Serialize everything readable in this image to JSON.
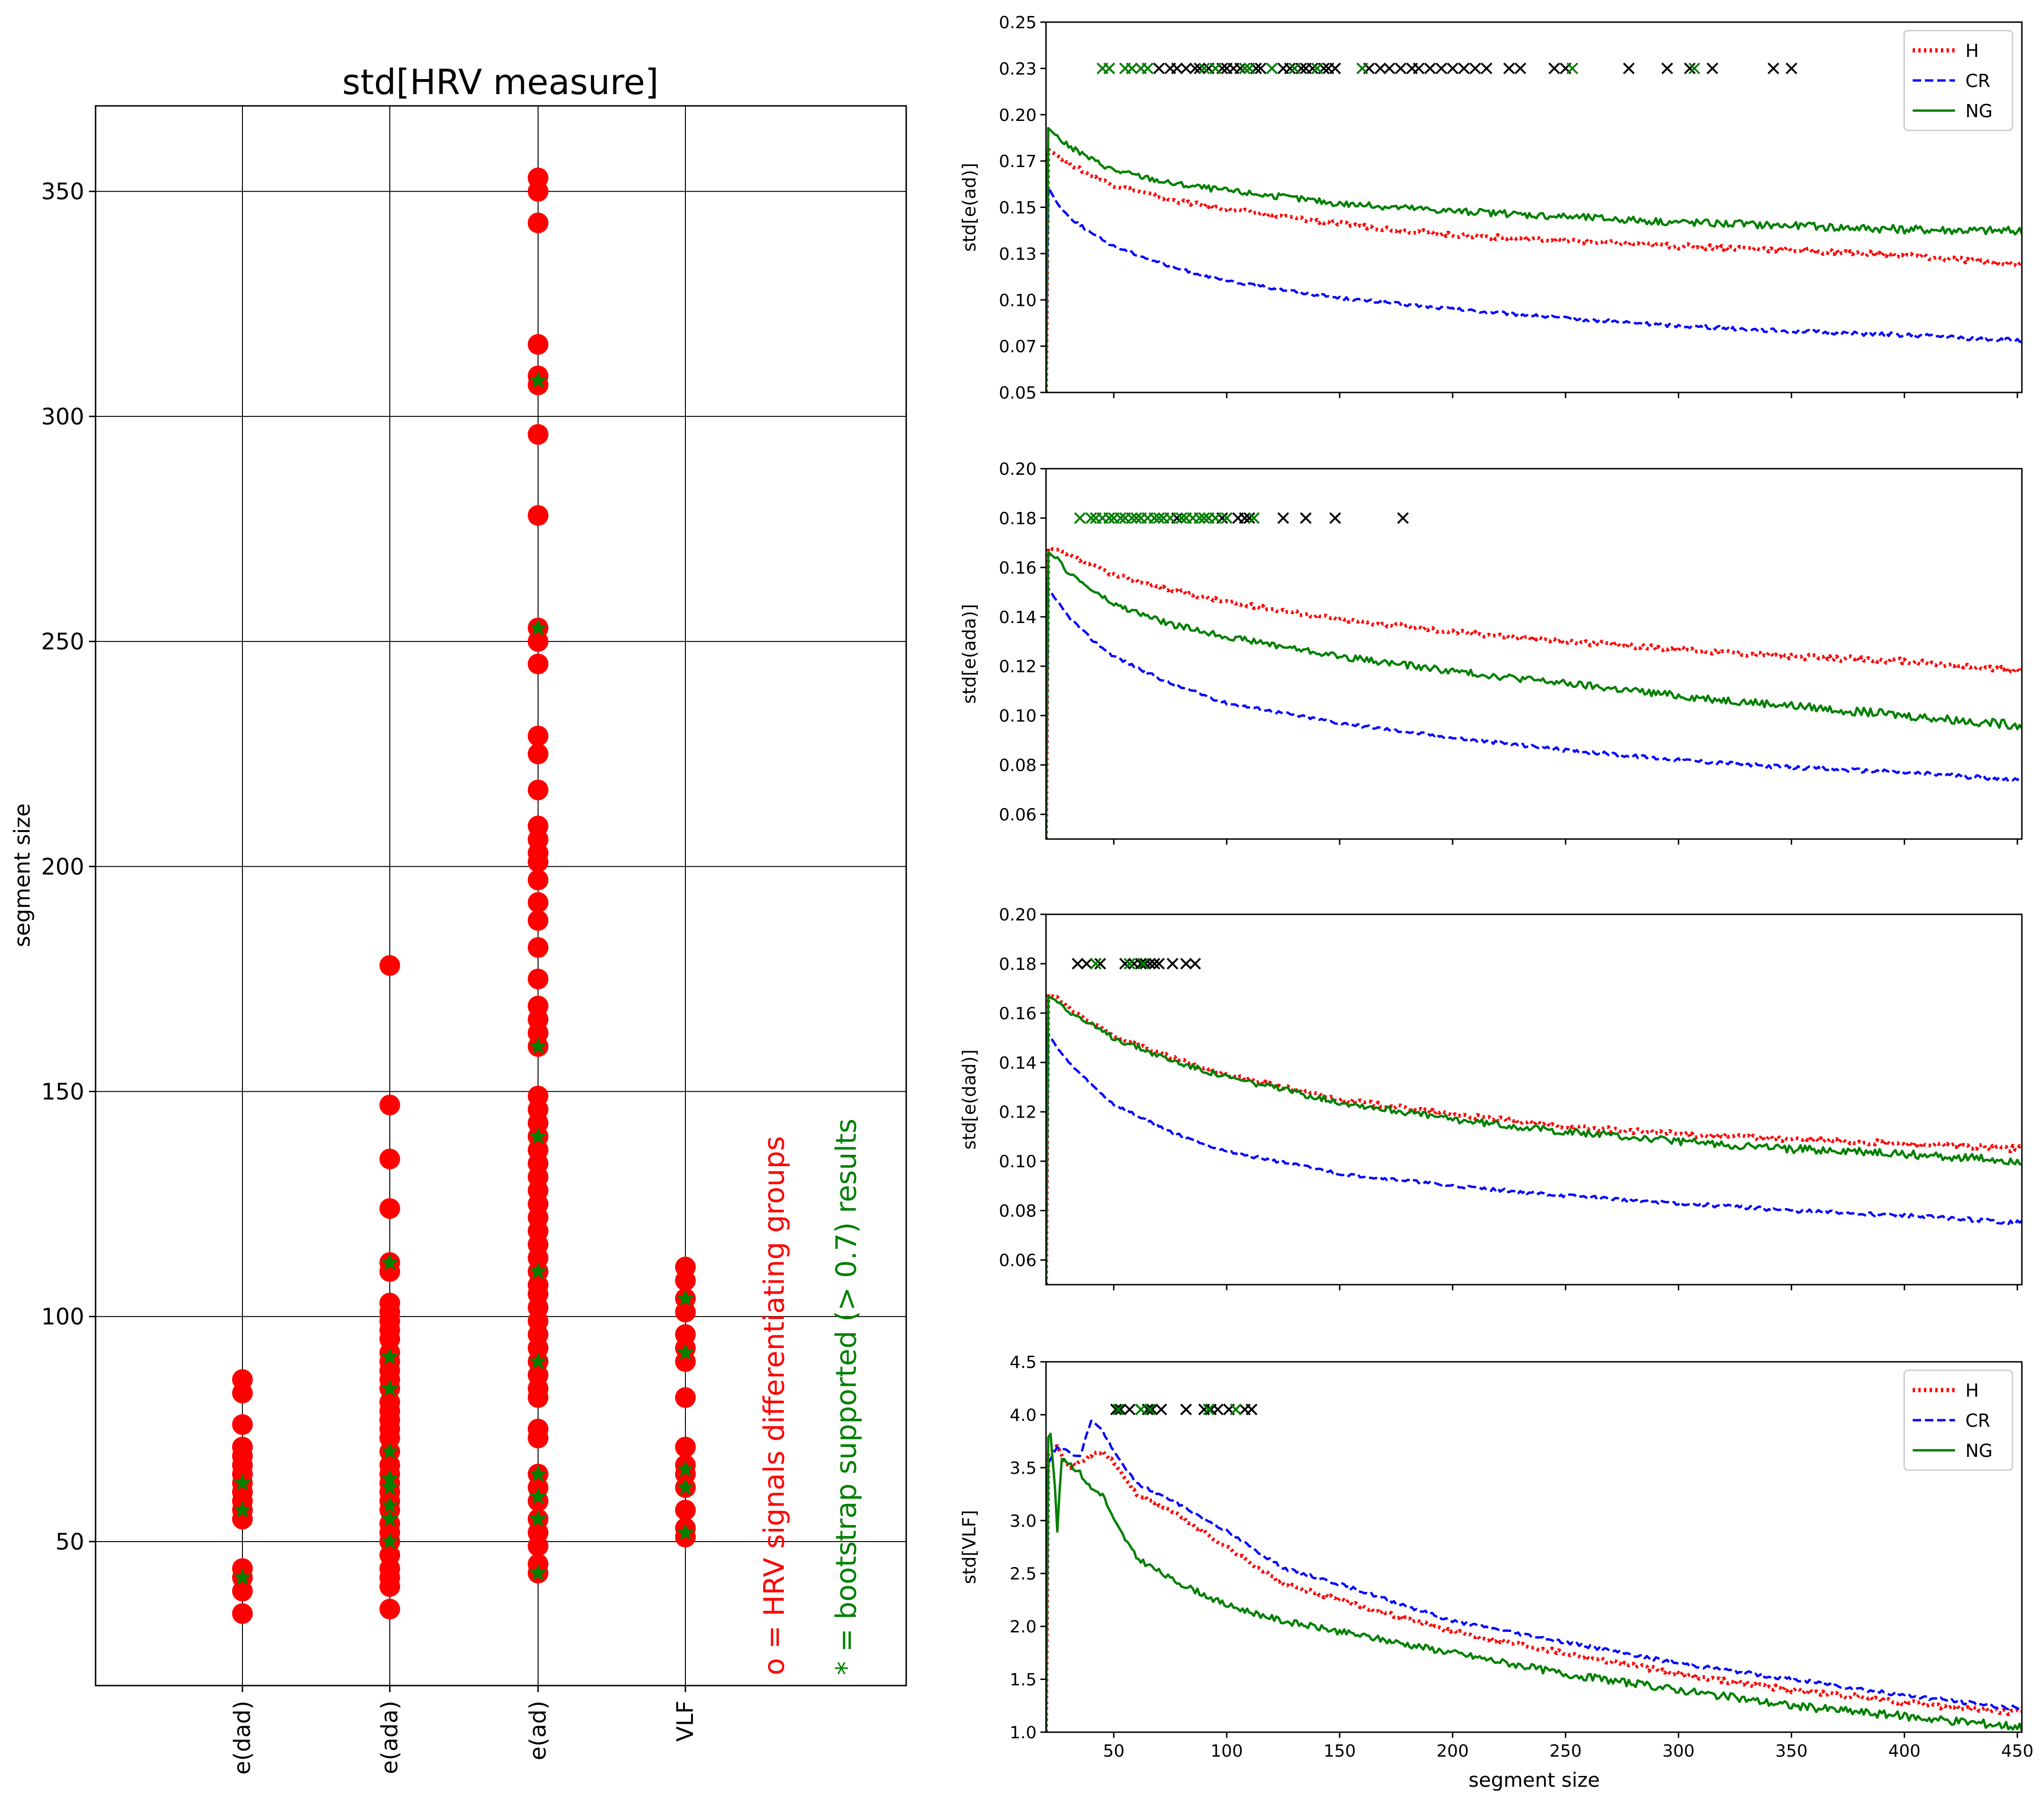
{
  "chart_data": [
    {
      "type": "scatter",
      "title": "std[HRV measure]",
      "xlabel": "",
      "ylabel": "segment size",
      "ylim": [
        18,
        369
      ],
      "yticks": [
        50,
        100,
        150,
        200,
        250,
        300,
        350
      ],
      "categories": [
        "e(dad)",
        "e(ada)",
        "e(ad)",
        "VLF"
      ],
      "annotations": [
        {
          "text": "o = HRV signals differentiating groups",
          "color": "#ff0000"
        },
        {
          "text": "* = bootstrap supported (> 0.7) results",
          "color": "#008000"
        }
      ],
      "series": [
        {
          "name": "HRV signals differentiating groups",
          "marker": "o",
          "color": "#ff0000",
          "points": {
            "e(dad)": [
              34,
              39,
              42,
              44,
              55,
              57,
              59,
              61,
              63,
              65,
              67,
              69,
              71,
              76,
              83,
              86
            ],
            "e(ada)": [
              35,
              40,
              42,
              44,
              47,
              50,
              52,
              54,
              57,
              59,
              61,
              63,
              65,
              67,
              70,
              73,
              75,
              77,
              79,
              81,
              84,
              86,
              88,
              90,
              92,
              95,
              97,
              99,
              101,
              103,
              110,
              112,
              124,
              135,
              147,
              178
            ],
            "e(ad)": [
              43,
              45,
              49,
              52,
              55,
              59,
              62,
              65,
              73,
              75,
              82,
              84,
              87,
              90,
              93,
              96,
              99,
              102,
              105,
              107,
              110,
              113,
              116,
              119,
              122,
              125,
              128,
              131,
              134,
              137,
              140,
              143,
              146,
              149,
              160,
              163,
              166,
              169,
              175,
              182,
              188,
              192,
              197,
              201,
              203,
              206,
              209,
              217,
              225,
              229,
              245,
              250,
              253,
              278,
              296,
              307,
              309,
              316,
              343,
              350,
              353
            ],
            "VLF": [
              51,
              53,
              57,
              62,
              65,
              67,
              71,
              82,
              90,
              93,
              96,
              101,
              104,
              108,
              111
            ]
          }
        },
        {
          "name": "bootstrap supported (> 0.7) results",
          "marker": "*",
          "color": "#008000",
          "points": {
            "e(dad)": [
              42,
              57,
              63
            ],
            "e(ada)": [
              50,
              55,
              58,
              62,
              64,
              70,
              84,
              91,
              112
            ],
            "e(ad)": [
              43,
              55,
              60,
              65,
              90,
              110,
              140,
              160,
              253,
              308
            ],
            "VLF": [
              52,
              62,
              66,
              92,
              104
            ]
          }
        }
      ]
    },
    {
      "type": "line",
      "xlabel": "",
      "ylabel": "std[e(ad)]",
      "xlim": [
        20,
        452
      ],
      "ylim": [
        0.05,
        0.25
      ],
      "yticks": [
        0.05,
        0.075,
        0.1,
        0.125,
        0.15,
        0.175,
        0.2,
        0.225,
        0.25
      ],
      "legend": "top-right",
      "marker_row_y": 0.225,
      "x_markers": [
        45,
        48,
        55,
        58,
        62,
        65,
        70,
        75,
        78,
        82,
        86,
        88,
        92,
        95,
        98,
        100,
        103,
        106,
        108,
        110,
        113,
        115,
        120,
        125,
        128,
        130,
        133,
        135,
        138,
        140,
        143,
        145,
        148,
        160,
        163,
        168,
        172,
        177,
        182,
        185,
        190,
        195,
        200,
        205,
        210,
        215,
        225,
        230,
        245,
        250,
        278,
        295,
        305,
        315,
        342,
        350
      ],
      "green_markers": [
        45,
        48,
        55,
        58,
        62,
        65,
        90,
        95,
        108,
        110,
        120,
        130,
        140,
        160,
        253,
        307
      ],
      "series": [
        {
          "name": "H",
          "color": "#ff0000",
          "style": "dotted",
          "x": [
            20,
            25,
            30,
            40,
            50,
            75,
            100,
            150,
            200,
            250,
            300,
            350,
            400,
            452
          ],
          "y": [
            0.182,
            0.178,
            0.174,
            0.167,
            0.162,
            0.154,
            0.149,
            0.141,
            0.135,
            0.132,
            0.129,
            0.127,
            0.124,
            0.119
          ]
        },
        {
          "name": "CR",
          "color": "#0000ff",
          "style": "dashed",
          "x": [
            20,
            25,
            30,
            40,
            50,
            75,
            100,
            150,
            200,
            250,
            300,
            350,
            400,
            452
          ],
          "y": [
            0.163,
            0.152,
            0.145,
            0.136,
            0.129,
            0.118,
            0.11,
            0.101,
            0.095,
            0.09,
            0.086,
            0.083,
            0.081,
            0.078
          ]
        },
        {
          "name": "NG",
          "color": "#008000",
          "style": "solid",
          "x": [
            20,
            25,
            30,
            40,
            50,
            75,
            100,
            150,
            200,
            250,
            300,
            350,
            400,
            452
          ],
          "y": [
            0.194,
            0.188,
            0.183,
            0.176,
            0.17,
            0.163,
            0.159,
            0.152,
            0.148,
            0.145,
            0.142,
            0.14,
            0.138,
            0.137
          ]
        }
      ]
    },
    {
      "type": "line",
      "xlabel": "",
      "ylabel": "std[e(ada)]",
      "xlim": [
        20,
        452
      ],
      "ylim": [
        0.05,
        0.2
      ],
      "yticks": [
        0.06,
        0.08,
        0.1,
        0.12,
        0.14,
        0.16,
        0.18,
        0.2
      ],
      "marker_row_y": 0.18,
      "x_markers": [
        35,
        40,
        42,
        45,
        48,
        50,
        53,
        55,
        58,
        60,
        62,
        65,
        68,
        70,
        72,
        75,
        78,
        80,
        82,
        85,
        88,
        90,
        92,
        95,
        98,
        100,
        105,
        108,
        110,
        112,
        125,
        135,
        148,
        178
      ],
      "green_markers": [
        35,
        40,
        42,
        45,
        48,
        50,
        53,
        55,
        58,
        60,
        62,
        65,
        68,
        70,
        72,
        75,
        80,
        82,
        85,
        88,
        90,
        92,
        95,
        100,
        112
      ],
      "series": [
        {
          "name": "H",
          "color": "#ff0000",
          "style": "dotted",
          "x": [
            20,
            25,
            30,
            40,
            50,
            75,
            100,
            150,
            200,
            250,
            300,
            350,
            400,
            452
          ],
          "y": [
            0.168,
            0.167,
            0.165,
            0.161,
            0.157,
            0.151,
            0.146,
            0.139,
            0.134,
            0.13,
            0.127,
            0.124,
            0.122,
            0.118
          ]
        },
        {
          "name": "CR",
          "color": "#0000ff",
          "style": "dashed",
          "x": [
            20,
            25,
            30,
            40,
            50,
            75,
            100,
            150,
            200,
            250,
            300,
            350,
            400,
            452
          ],
          "y": [
            0.153,
            0.146,
            0.14,
            0.131,
            0.124,
            0.113,
            0.105,
            0.097,
            0.091,
            0.086,
            0.082,
            0.079,
            0.077,
            0.074
          ]
        },
        {
          "name": "NG",
          "color": "#008000",
          "style": "solid",
          "x": [
            20,
            25,
            30,
            40,
            50,
            75,
            100,
            150,
            200,
            250,
            300,
            350,
            400,
            452
          ],
          "y": [
            0.167,
            0.163,
            0.158,
            0.151,
            0.145,
            0.137,
            0.132,
            0.124,
            0.118,
            0.113,
            0.108,
            0.104,
            0.1,
            0.096
          ]
        }
      ]
    },
    {
      "type": "line",
      "xlabel": "",
      "ylabel": "std[e(dad)]",
      "xlim": [
        20,
        452
      ],
      "ylim": [
        0.05,
        0.2
      ],
      "yticks": [
        0.06,
        0.08,
        0.1,
        0.12,
        0.14,
        0.16,
        0.18,
        0.2
      ],
      "marker_row_y": 0.18,
      "x_markers": [
        34,
        38,
        42,
        44,
        55,
        57,
        59,
        62,
        64,
        66,
        68,
        70,
        76,
        82,
        86
      ],
      "green_markers": [
        42,
        57,
        63
      ],
      "series": [
        {
          "name": "H",
          "color": "#ff0000",
          "style": "dotted",
          "x": [
            20,
            25,
            30,
            40,
            50,
            75,
            100,
            150,
            200,
            250,
            300,
            350,
            400,
            452
          ],
          "y": [
            0.168,
            0.166,
            0.162,
            0.156,
            0.151,
            0.142,
            0.135,
            0.125,
            0.119,
            0.114,
            0.111,
            0.109,
            0.107,
            0.105
          ]
        },
        {
          "name": "CR",
          "color": "#0000ff",
          "style": "dashed",
          "x": [
            20,
            25,
            30,
            40,
            50,
            75,
            100,
            150,
            200,
            250,
            300,
            350,
            400,
            452
          ],
          "y": [
            0.153,
            0.146,
            0.14,
            0.131,
            0.123,
            0.112,
            0.104,
            0.095,
            0.09,
            0.086,
            0.083,
            0.08,
            0.078,
            0.075
          ]
        },
        {
          "name": "NG",
          "color": "#008000",
          "style": "solid",
          "x": [
            20,
            25,
            30,
            40,
            50,
            75,
            100,
            150,
            200,
            250,
            300,
            350,
            400,
            452
          ],
          "y": [
            0.167,
            0.165,
            0.161,
            0.155,
            0.15,
            0.141,
            0.134,
            0.124,
            0.117,
            0.112,
            0.108,
            0.105,
            0.103,
            0.1
          ]
        }
      ]
    },
    {
      "type": "line",
      "xlabel": "segment size",
      "ylabel": "std[VLF]",
      "xlim": [
        20,
        452
      ],
      "ylim": [
        1.0,
        4.5
      ],
      "yticks": [
        1.0,
        1.5,
        2.0,
        2.5,
        3.0,
        3.5,
        4.0,
        4.5
      ],
      "xticks": [
        50,
        100,
        150,
        200,
        250,
        300,
        350,
        400,
        450
      ],
      "legend": "top-right",
      "marker_row_y": 4.05,
      "x_markers": [
        51,
        53,
        57,
        62,
        65,
        67,
        71,
        82,
        90,
        93,
        96,
        101,
        104,
        108,
        111
      ],
      "green_markers": [
        52,
        62,
        66,
        92,
        104
      ],
      "series": [
        {
          "name": "H",
          "color": "#ff0000",
          "style": "dotted",
          "x": [
            20,
            25,
            30,
            35,
            40,
            45,
            50,
            60,
            75,
            100,
            125,
            150,
            200,
            250,
            300,
            350,
            400,
            452
          ],
          "y": [
            3.6,
            3.72,
            3.5,
            3.55,
            3.62,
            3.65,
            3.55,
            3.25,
            3.1,
            2.75,
            2.4,
            2.25,
            1.95,
            1.75,
            1.55,
            1.4,
            1.28,
            1.18
          ]
        },
        {
          "name": "CR",
          "color": "#0000ff",
          "style": "dashed",
          "x": [
            20,
            25,
            30,
            35,
            40,
            45,
            50,
            60,
            75,
            100,
            125,
            150,
            200,
            250,
            300,
            350,
            400,
            452
          ],
          "y": [
            3.5,
            3.7,
            3.65,
            3.6,
            3.95,
            3.85,
            3.65,
            3.35,
            3.2,
            2.9,
            2.55,
            2.4,
            2.05,
            1.85,
            1.65,
            1.5,
            1.35,
            1.22
          ]
        },
        {
          "name": "NG",
          "color": "#008000",
          "style": "solid",
          "x": [
            20,
            22,
            24,
            25,
            27,
            30,
            35,
            40,
            45,
            50,
            60,
            75,
            100,
            125,
            150,
            200,
            250,
            300,
            350,
            400,
            452
          ],
          "y": [
            3.75,
            3.82,
            3.3,
            2.9,
            3.6,
            3.55,
            3.45,
            3.3,
            3.25,
            3.0,
            2.65,
            2.45,
            2.2,
            2.05,
            1.95,
            1.75,
            1.55,
            1.4,
            1.25,
            1.15,
            1.05
          ]
        }
      ]
    }
  ]
}
